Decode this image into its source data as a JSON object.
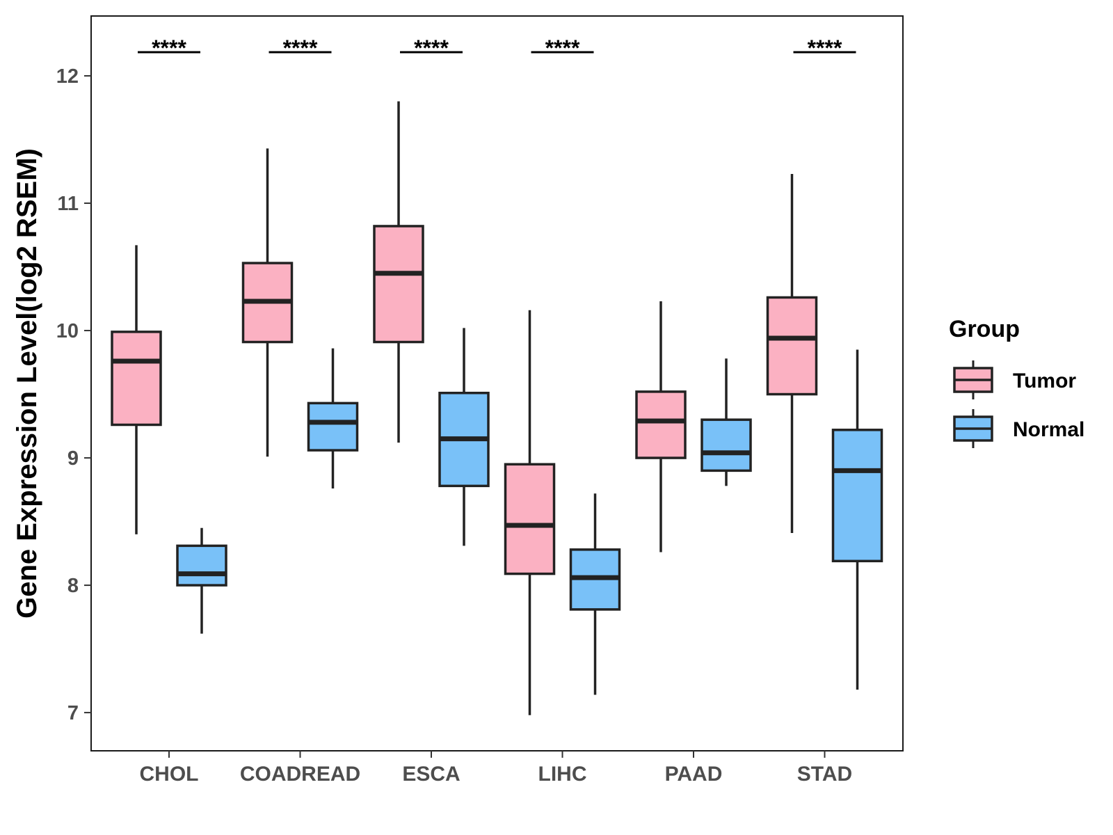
{
  "chart_data": {
    "type": "boxplot",
    "title": "",
    "xlabel": "",
    "ylabel": "Gene Expression Level(log2 RSEM)",
    "ylim": [
      6.7,
      12.47
    ],
    "yticks": [
      7,
      8,
      9,
      10,
      11,
      12
    ],
    "grid": false,
    "categories": [
      "CHOL",
      "COADREAD",
      "ESCA",
      "LIHC",
      "PAAD",
      "STAD"
    ],
    "legend": {
      "title": "Group",
      "position": "right",
      "entries": [
        {
          "name": "Tumor",
          "color": "#FBB1C2"
        },
        {
          "name": "Normal",
          "color": "#79C1F8"
        }
      ]
    },
    "series": [
      {
        "name": "Tumor",
        "color": "#FBB1C2",
        "boxes": [
          {
            "min": 8.4,
            "q1": 9.26,
            "median": 9.76,
            "q3": 9.99,
            "max": 10.67
          },
          {
            "min": 9.01,
            "q1": 9.91,
            "median": 10.23,
            "q3": 10.53,
            "max": 11.43
          },
          {
            "min": 9.12,
            "q1": 9.91,
            "median": 10.45,
            "q3": 10.82,
            "max": 11.8
          },
          {
            "min": 6.98,
            "q1": 8.09,
            "median": 8.47,
            "q3": 8.95,
            "max": 10.16
          },
          {
            "min": 8.26,
            "q1": 9.0,
            "median": 9.29,
            "q3": 9.52,
            "max": 10.23
          },
          {
            "min": 8.41,
            "q1": 9.5,
            "median": 9.94,
            "q3": 10.26,
            "max": 11.23
          }
        ]
      },
      {
        "name": "Normal",
        "color": "#79C1F8",
        "boxes": [
          {
            "min": 7.62,
            "q1": 8.0,
            "median": 8.09,
            "q3": 8.31,
            "max": 8.45
          },
          {
            "min": 8.76,
            "q1": 9.06,
            "median": 9.28,
            "q3": 9.43,
            "max": 9.86
          },
          {
            "min": 8.31,
            "q1": 8.78,
            "median": 9.15,
            "q3": 9.51,
            "max": 10.02
          },
          {
            "min": 7.14,
            "q1": 7.81,
            "median": 8.06,
            "q3": 8.28,
            "max": 8.72
          },
          {
            "min": 8.78,
            "q1": 8.9,
            "median": 9.04,
            "q3": 9.3,
            "max": 9.78
          },
          {
            "min": 7.18,
            "q1": 8.19,
            "median": 8.9,
            "q3": 9.22,
            "max": 9.85
          }
        ]
      }
    ],
    "significance": [
      {
        "category": "CHOL",
        "label": "****"
      },
      {
        "category": "COADREAD",
        "label": "****"
      },
      {
        "category": "ESCA",
        "label": "****"
      },
      {
        "category": "LIHC",
        "label": "****"
      },
      {
        "category": "STAD",
        "label": "****"
      }
    ]
  }
}
